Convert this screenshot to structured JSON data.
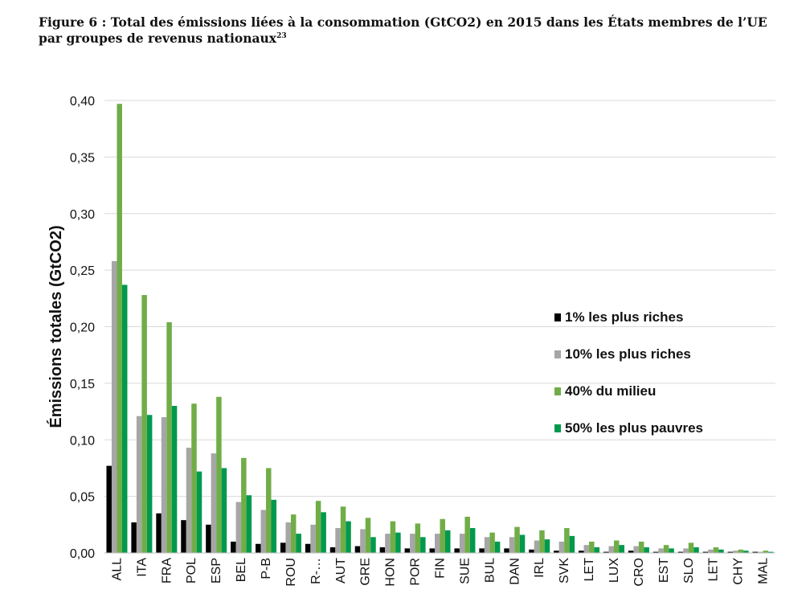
{
  "figure": {
    "title_line1": "Figure 6 : Total des émissions liées à la consommation (GtCO2) en 2015 dans les États membres de l’UE",
    "title_line2": "par groupes de revenus nationaux",
    "footnote_ref": "23"
  },
  "chart_data": {
    "type": "bar",
    "title": "",
    "xlabel": "",
    "ylabel": "Émissions totales (GtCO2)",
    "ylim": [
      0,
      0.4
    ],
    "yticks": [
      "0,00",
      "0,05",
      "0,10",
      "0,15",
      "0,20",
      "0,25",
      "0,30",
      "0,35",
      "0,40"
    ],
    "grid": true,
    "legend_position": "right",
    "categories": [
      "ALL",
      "ITA",
      "FRA",
      "POL",
      "ESP",
      "BEL",
      "P-B",
      "ROU",
      "R-…",
      "AUT",
      "GRE",
      "HON",
      "POR",
      "FIN",
      "SUE",
      "BUL",
      "DAN",
      "IRL",
      "SVK",
      "LET",
      "LUX",
      "CRO",
      "EST",
      "SLO",
      "LET",
      "CHY",
      "MAL"
    ],
    "series": [
      {
        "name": "1% les plus riches",
        "color": "#000000",
        "values": [
          0.077,
          0.027,
          0.035,
          0.029,
          0.025,
          0.01,
          0.008,
          0.009,
          0.008,
          0.005,
          0.006,
          0.005,
          0.004,
          0.004,
          0.004,
          0.004,
          0.004,
          0.003,
          0.002,
          0.002,
          0.001,
          0.002,
          0.001,
          0.001,
          0.001,
          0.001,
          0.001
        ]
      },
      {
        "name": "10% les plus riches",
        "color": "#a6a6a6",
        "values": [
          0.258,
          0.121,
          0.12,
          0.093,
          0.088,
          0.045,
          0.038,
          0.027,
          0.025,
          0.022,
          0.021,
          0.017,
          0.017,
          0.017,
          0.017,
          0.014,
          0.014,
          0.011,
          0.01,
          0.007,
          0.006,
          0.006,
          0.004,
          0.004,
          0.003,
          0.002,
          0.001
        ]
      },
      {
        "name": "40% du milieu",
        "color": "#70ad47",
        "values": [
          0.397,
          0.228,
          0.204,
          0.132,
          0.138,
          0.084,
          0.075,
          0.034,
          0.046,
          0.041,
          0.031,
          0.028,
          0.026,
          0.03,
          0.032,
          0.018,
          0.023,
          0.02,
          0.022,
          0.01,
          0.011,
          0.01,
          0.007,
          0.009,
          0.005,
          0.003,
          0.002
        ]
      },
      {
        "name": "50% les plus pauvres",
        "color": "#00994d",
        "values": [
          0.237,
          0.122,
          0.13,
          0.072,
          0.075,
          0.051,
          0.047,
          0.017,
          0.036,
          0.028,
          0.014,
          0.018,
          0.014,
          0.02,
          0.022,
          0.01,
          0.016,
          0.012,
          0.015,
          0.005,
          0.007,
          0.005,
          0.004,
          0.005,
          0.003,
          0.002,
          0.001
        ]
      }
    ]
  }
}
